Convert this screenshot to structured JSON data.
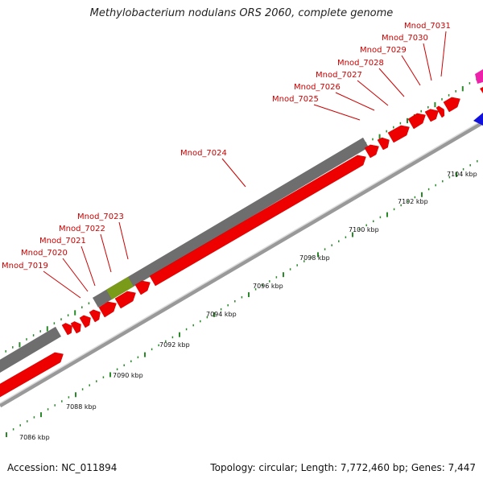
{
  "title": "Methylobacterium nodulans ORS 2060, complete genome",
  "footer": {
    "accession": "Accession: NC_011894",
    "topology": "Topology: circular; Length: 7,772,460 bp; Genes: 7,447"
  },
  "colors": {
    "gene_label": "#cc0000",
    "cds": "#ee0000",
    "gene_bar": "#6e6e6e",
    "highlight": "#7a9a1a",
    "backbone": "#999999",
    "tick": "#2a8a2a",
    "neighbor_magenta": "#ee22aa",
    "neighbor_blue": "#1111dd"
  },
  "gene_labels": [
    "Mnod_7019",
    "Mnod_7020",
    "Mnod_7021",
    "Mnod_7022",
    "Mnod_7023",
    "Mnod_7024",
    "Mnod_7025",
    "Mnod_7026",
    "Mnod_7027",
    "Mnod_7028",
    "Mnod_7029",
    "Mnod_7030",
    "Mnod_7031"
  ],
  "scale_labels": [
    "7086 kbp",
    "7088 kbp",
    "7090 kbp",
    "7092 kbp",
    "7094 kbp",
    "7096 kbp",
    "7098 kbp",
    "7100 kbp",
    "7102 kbp",
    "7104 kbp"
  ]
}
